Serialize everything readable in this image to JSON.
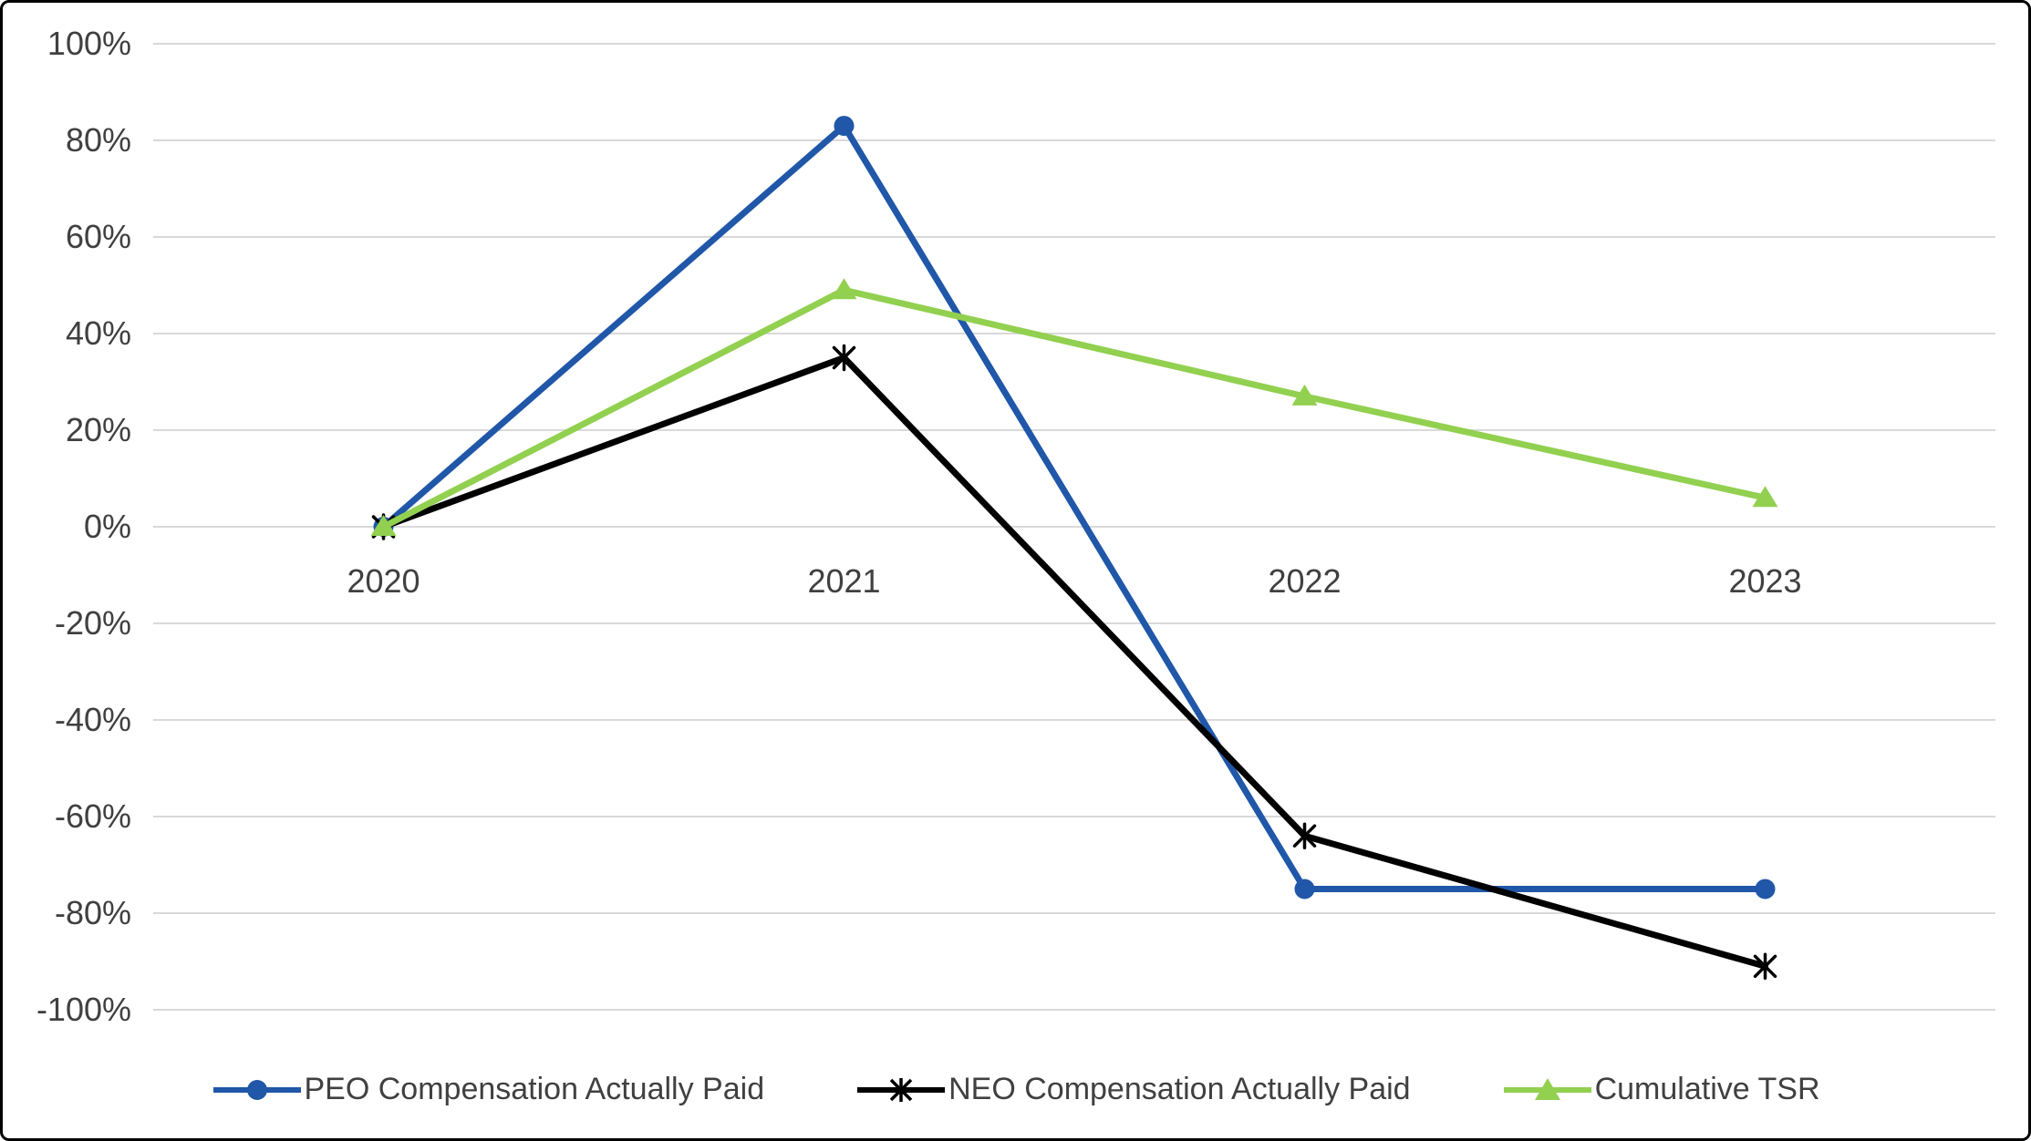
{
  "chart_data": {
    "type": "line",
    "categories": [
      "2020",
      "2021",
      "2022",
      "2023"
    ],
    "series": [
      {
        "name": "PEO Compensation Actually Paid",
        "values": [
          0,
          83,
          -75,
          -75
        ],
        "color": "#2057A8",
        "marker": "circle"
      },
      {
        "name": "NEO Compensation Actually Paid",
        "values": [
          0,
          35,
          -64,
          -91
        ],
        "color": "#000000",
        "marker": "asterisk"
      },
      {
        "name": "Cumulative TSR",
        "values": [
          0,
          49,
          27,
          6
        ],
        "color": "#92D050",
        "marker": "triangle"
      }
    ],
    "title": "",
    "xlabel": "",
    "ylabel": "",
    "ylim": [
      -100,
      100
    ],
    "ytick_step": 20,
    "ytick_labels": [
      "100%",
      "80%",
      "60%",
      "40%",
      "20%",
      "0%",
      "-20%",
      "-40%",
      "-60%",
      "-80%",
      "-100%"
    ],
    "grid": true,
    "legend_position": "bottom",
    "gridline_color": "#D9D9D9",
    "text_color": "#404040",
    "background_color": "#FFFFFF",
    "border_color": "#000000"
  }
}
